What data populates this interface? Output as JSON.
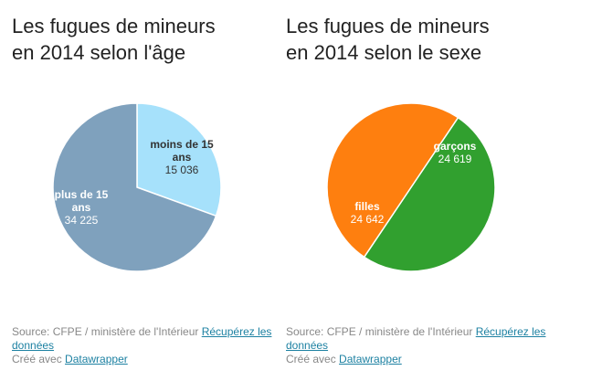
{
  "charts": [
    {
      "title": "Les fugues de mineurs\nen 2014 selon l'âge",
      "source_prefix": "Source: CFPE / ministère de l'Intérieur",
      "source_link": "Récupérez les données",
      "credit_prefix": "Créé avec",
      "credit_link": "Datawrapper"
    },
    {
      "title": "Les fugues de mineurs\nen 2014 selon le sexe",
      "source_prefix": "Source: CFPE / ministère de l'Intérieur",
      "source_link": "Récupérez les données",
      "credit_prefix": "Créé avec",
      "credit_link": "Datawrapper"
    }
  ],
  "chart_data": [
    {
      "type": "pie",
      "title": "Les fugues de mineurs en 2014 selon l'âge",
      "slices": [
        {
          "label": "moins de 15 ans",
          "value": 15036,
          "value_text": "15 036",
          "color": "#a6e1fb",
          "label_color": "#333333"
        },
        {
          "label": "plus de 15 ans",
          "value": 34225,
          "value_text": "34 225",
          "color": "#7fa1bd",
          "label_color": "#ffffff"
        }
      ]
    },
    {
      "type": "pie",
      "title": "Les fugues de mineurs en 2014 selon le sexe",
      "slices": [
        {
          "label": "garçons",
          "value": 24619,
          "value_text": "24 619",
          "color": "#31a02f",
          "label_color": "#ffffff"
        },
        {
          "label": "filles",
          "value": 24642,
          "value_text": "24 642",
          "color": "#fe7f0f",
          "label_color": "#ffffff"
        }
      ]
    }
  ]
}
